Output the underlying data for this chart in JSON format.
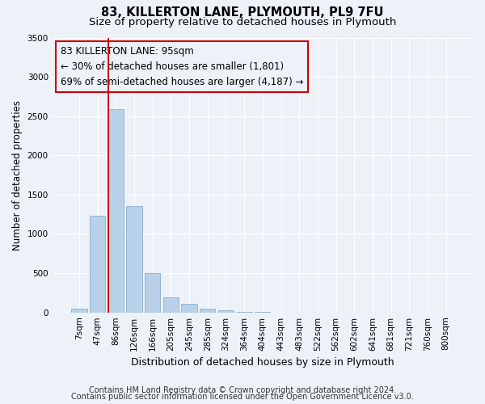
{
  "title": "83, KILLERTON LANE, PLYMOUTH, PL9 7FU",
  "subtitle": "Size of property relative to detached houses in Plymouth",
  "xlabel": "Distribution of detached houses by size in Plymouth",
  "ylabel": "Number of detached properties",
  "bar_labels": [
    "7sqm",
    "47sqm",
    "86sqm",
    "126sqm",
    "166sqm",
    "205sqm",
    "245sqm",
    "285sqm",
    "324sqm",
    "364sqm",
    "404sqm",
    "443sqm",
    "483sqm",
    "522sqm",
    "562sqm",
    "602sqm",
    "641sqm",
    "681sqm",
    "721sqm",
    "760sqm",
    "800sqm"
  ],
  "bar_values": [
    50,
    1230,
    2590,
    1350,
    500,
    195,
    110,
    45,
    25,
    5,
    5,
    0,
    0,
    0,
    0,
    0,
    0,
    0,
    0,
    0,
    0
  ],
  "bar_color": "#b8d0e8",
  "bar_edgecolor": "#8ab0cc",
  "vline_color": "#cc0000",
  "annotation_line1": "83 KILLERTON LANE: 95sqm",
  "annotation_line2": "← 30% of detached houses are smaller (1,801)",
  "annotation_line3": "69% of semi-detached houses are larger (4,187) →",
  "annotation_box_edgecolor": "#cc0000",
  "annotation_fontsize": 8.5,
  "ylim": [
    0,
    3500
  ],
  "yticks": [
    0,
    500,
    1000,
    1500,
    2000,
    2500,
    3000,
    3500
  ],
  "footer1": "Contains HM Land Registry data © Crown copyright and database right 2024.",
  "footer2": "Contains public sector information licensed under the Open Government Licence v3.0.",
  "background_color": "#edf2f9",
  "grid_color": "#ffffff",
  "title_fontsize": 10.5,
  "subtitle_fontsize": 9.5,
  "xlabel_fontsize": 9,
  "ylabel_fontsize": 8.5,
  "tick_fontsize": 7.5,
  "footer_fontsize": 7
}
